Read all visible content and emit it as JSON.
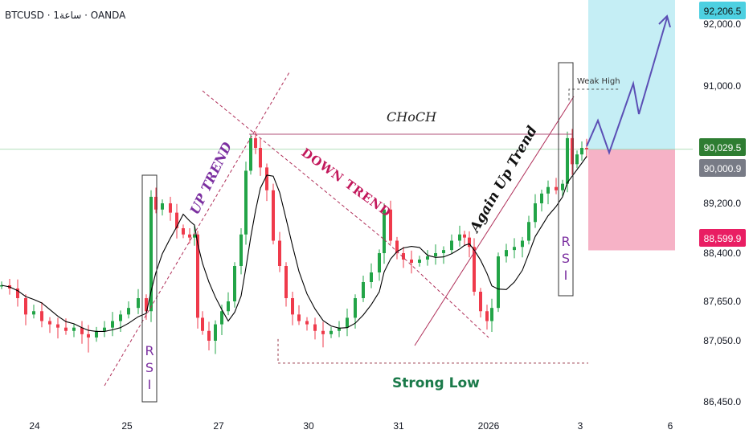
{
  "header": {
    "symbol": "BTCUSD · 1ساعة · OANDA"
  },
  "colors": {
    "up": "#22a447",
    "down": "#ef3a4b",
    "ma": "#000000",
    "target_zone": "#c5eef5",
    "stop_zone": "#f6b2c6",
    "badge_cyan": "#4dd0e1",
    "badge_green": "#2e7d32",
    "badge_gray": "#787b86",
    "badge_red": "#e91e63",
    "projection": "#5b4fb5",
    "trendline": "#b0305a"
  },
  "chart_data": {
    "type": "candlestick",
    "title": "",
    "x_ticks": [
      "24",
      "25",
      "27",
      "30",
      "31",
      "2026",
      "3",
      "6"
    ],
    "y_ticks": [
      "92,000.0",
      "91,000.0",
      "89,200.0",
      "88,400.0",
      "87,650.0",
      "87,050.0",
      "86,450.0"
    ],
    "price_badges": [
      {
        "label": "92,206.5",
        "value": 92206.5,
        "color": "cyan"
      },
      {
        "label": "90,029.5",
        "value": 90029.5,
        "color": "green"
      },
      {
        "label": "90,000.9",
        "value": 90000.9,
        "color": "gray"
      },
      {
        "label": "88,599.9",
        "value": 88599.9,
        "color": "red"
      }
    ],
    "ylim": [
      86250,
      92450
    ],
    "annotations": {
      "up_trend": "UP TREND",
      "down_trend": "DOWN TREND",
      "again_up_trend": "Again Up Trend",
      "choch": "CHoCH",
      "strong_low": "Strong Low",
      "weak_high": "Weak High",
      "rsi": "R S I"
    },
    "key_levels": {
      "choch_price": 90260,
      "strong_low_price": 86830,
      "weak_high_price": 90780,
      "entry_price": 90029.5,
      "stop_price": 88599.9,
      "target_price": 92206.5
    },
    "moving_average": "black line"
  }
}
